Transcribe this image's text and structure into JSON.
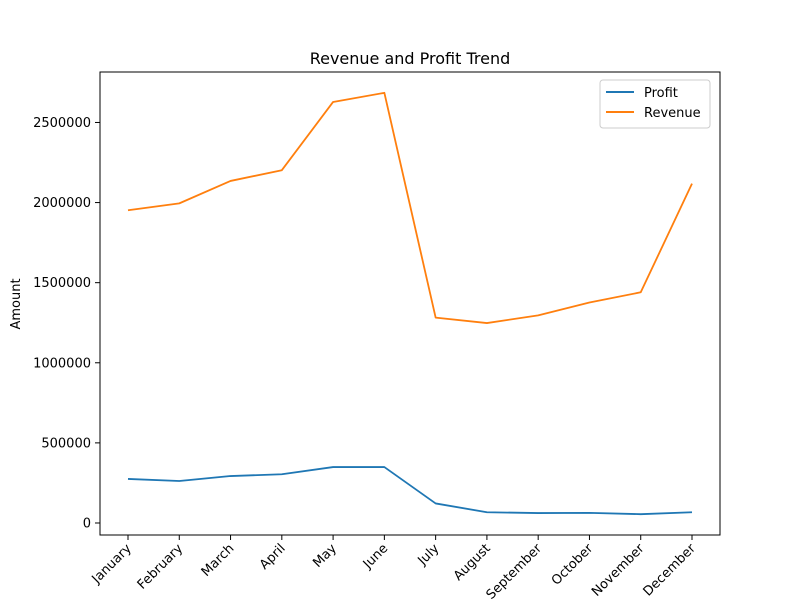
{
  "chart_data": {
    "type": "line",
    "title": "Revenue and Profit Trend",
    "xlabel": "",
    "ylabel": "Amount",
    "categories": [
      "January",
      "February",
      "March",
      "April",
      "May",
      "June",
      "July",
      "August",
      "September",
      "October",
      "November",
      "December"
    ],
    "series": [
      {
        "name": "Profit",
        "color": "#1f77b4",
        "values": [
          275000,
          262000,
          293000,
          304000,
          349000,
          349000,
          122000,
          67000,
          62000,
          63000,
          55000,
          67000
        ]
      },
      {
        "name": "Revenue",
        "color": "#ff7f0e",
        "values": [
          1952000,
          1995000,
          2135000,
          2202000,
          2628000,
          2685000,
          1282000,
          1248000,
          1296000,
          1376000,
          1440000,
          2118000
        ]
      }
    ],
    "ylim": [
      -75000,
      2815000
    ],
    "yticks": [
      0,
      500000,
      1000000,
      1500000,
      2000000,
      2500000
    ],
    "ytick_labels": [
      "0",
      "500000",
      "1000000",
      "1500000",
      "2000000",
      "2500000"
    ],
    "xtick_rotation": 45,
    "grid": false,
    "legend_position": "upper right"
  }
}
